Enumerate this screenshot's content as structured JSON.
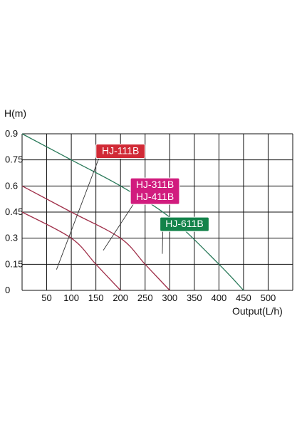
{
  "chart_data": {
    "type": "line",
    "ylabel": "H(m)",
    "xlabel": "Output(L/h)",
    "xlim": [
      0,
      550
    ],
    "ylim": [
      0,
      0.9
    ],
    "grid": true,
    "x_ticks": [
      "50",
      "100",
      "150",
      "200",
      "250",
      "300",
      "350",
      "400",
      "450",
      "500"
    ],
    "y_ticks": [
      "0",
      "0.15",
      "0.3",
      "0.45",
      "0.6",
      "0.75",
      "0.9"
    ],
    "series": [
      {
        "name": "HJ-111B",
        "color": "#a0304a",
        "points": [
          [
            0,
            0.45
          ],
          [
            100,
            0.3
          ],
          [
            150,
            0.15
          ],
          [
            200,
            0
          ]
        ]
      },
      {
        "name": "HJ-311B / HJ-411B",
        "color": "#a0304a",
        "points": [
          [
            0,
            0.6
          ],
          [
            100,
            0.45
          ],
          [
            200,
            0.3
          ],
          [
            250,
            0.15
          ],
          [
            300,
            0
          ]
        ]
      },
      {
        "name": "HJ-611B",
        "color": "#2a7a5a",
        "points": [
          [
            0,
            0.9
          ],
          [
            100,
            0.75
          ],
          [
            200,
            0.6
          ],
          [
            300,
            0.42
          ],
          [
            400,
            0.15
          ],
          [
            450,
            0
          ]
        ]
      }
    ],
    "tags": [
      {
        "lines": [
          "HJ-111B"
        ],
        "color": "#d12a36",
        "anchor": [
          200,
          0.8
        ],
        "target": [
          70,
          0.12
        ]
      },
      {
        "lines": [
          "HJ-311B",
          "HJ-411B"
        ],
        "color": "#d11c7e",
        "anchor": [
          270,
          0.57
        ],
        "target": [
          165,
          0.23
        ]
      },
      {
        "lines": [
          "HJ-611B"
        ],
        "color": "#13834a",
        "anchor": [
          330,
          0.38
        ],
        "target": [
          285,
          0.21
        ]
      }
    ]
  }
}
